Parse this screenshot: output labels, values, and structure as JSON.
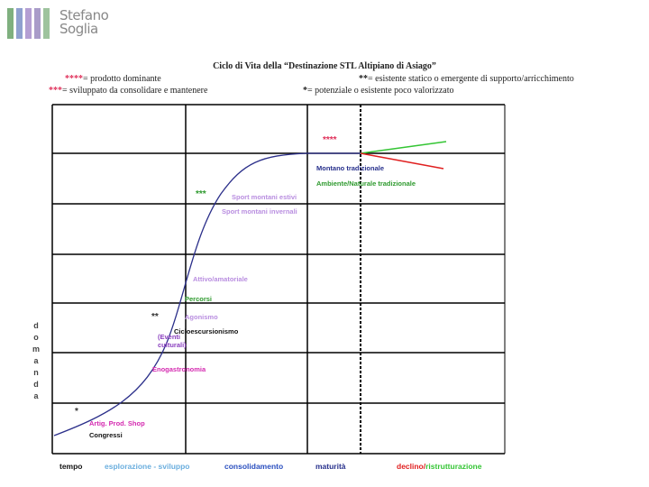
{
  "logo": {
    "line1": "Stefano",
    "line2": "Soglia",
    "bar_colors": [
      "#7fb07f",
      "#8fa0cf",
      "#b49fd3",
      "#a99cc9",
      "#9ec39e"
    ]
  },
  "title": "Ciclo di Vita della “Destinazione STL Altipiano di Asiago”",
  "legend": {
    "l1_mark": "****",
    "l1_text": "= prodotto dominante",
    "l2_mark": "***",
    "l2_text": "= sviluppato da consolidare e mantenere",
    "r1_mark": "**",
    "r1_text": "= esistente statico o emergente di supporto/arricchimento",
    "r2_mark": "*",
    "r2_text": "= potenziale o esistente poco valorizzato"
  },
  "y_axis_letters": [
    "d",
    "o",
    "m",
    "a",
    "n",
    "d",
    "a"
  ],
  "x_axis": {
    "tempo": "tempo",
    "phase1": "esplorazione - sviluppo",
    "phase2": "consolidamento",
    "phase3": "maturità",
    "phase4a": "declino/",
    "phase4b": "ristrutturazione"
  },
  "stars": {
    "s4": "****",
    "s3": "***",
    "s2": "**",
    "s1": "*"
  },
  "products": {
    "montano": "Montano tradizionale",
    "ambiente": "Ambiente/Naturale tradizionale",
    "sport_estivi": "Sport montani estivi",
    "sport_invernali": "Sport montani invernali",
    "attivo": "Attivo/amatoriale",
    "percorsi": "Percorsi",
    "agonismo": "Agonismo",
    "ciclo": "Cicloescursionismo",
    "eventi_1": "(Eventi",
    "eventi_2": "culturali)",
    "enogastro": "Enogastronomia",
    "artig": "Artig. Prod. Shop",
    "congressi": "Congressi"
  },
  "colors": {
    "curve": "#2b2f8a",
    "grid": "#000000",
    "stars": "#e0305a",
    "navy": "#27308c",
    "green": "#2e9a2e",
    "lavender": "#b98ee0",
    "purple": "#8a3fbf",
    "magenta": "#d42ab0",
    "black": "#111111",
    "light_blue": "#6aaede",
    "blue": "#2a4fbf",
    "red": "#e02020",
    "bright_green": "#34c534"
  }
}
